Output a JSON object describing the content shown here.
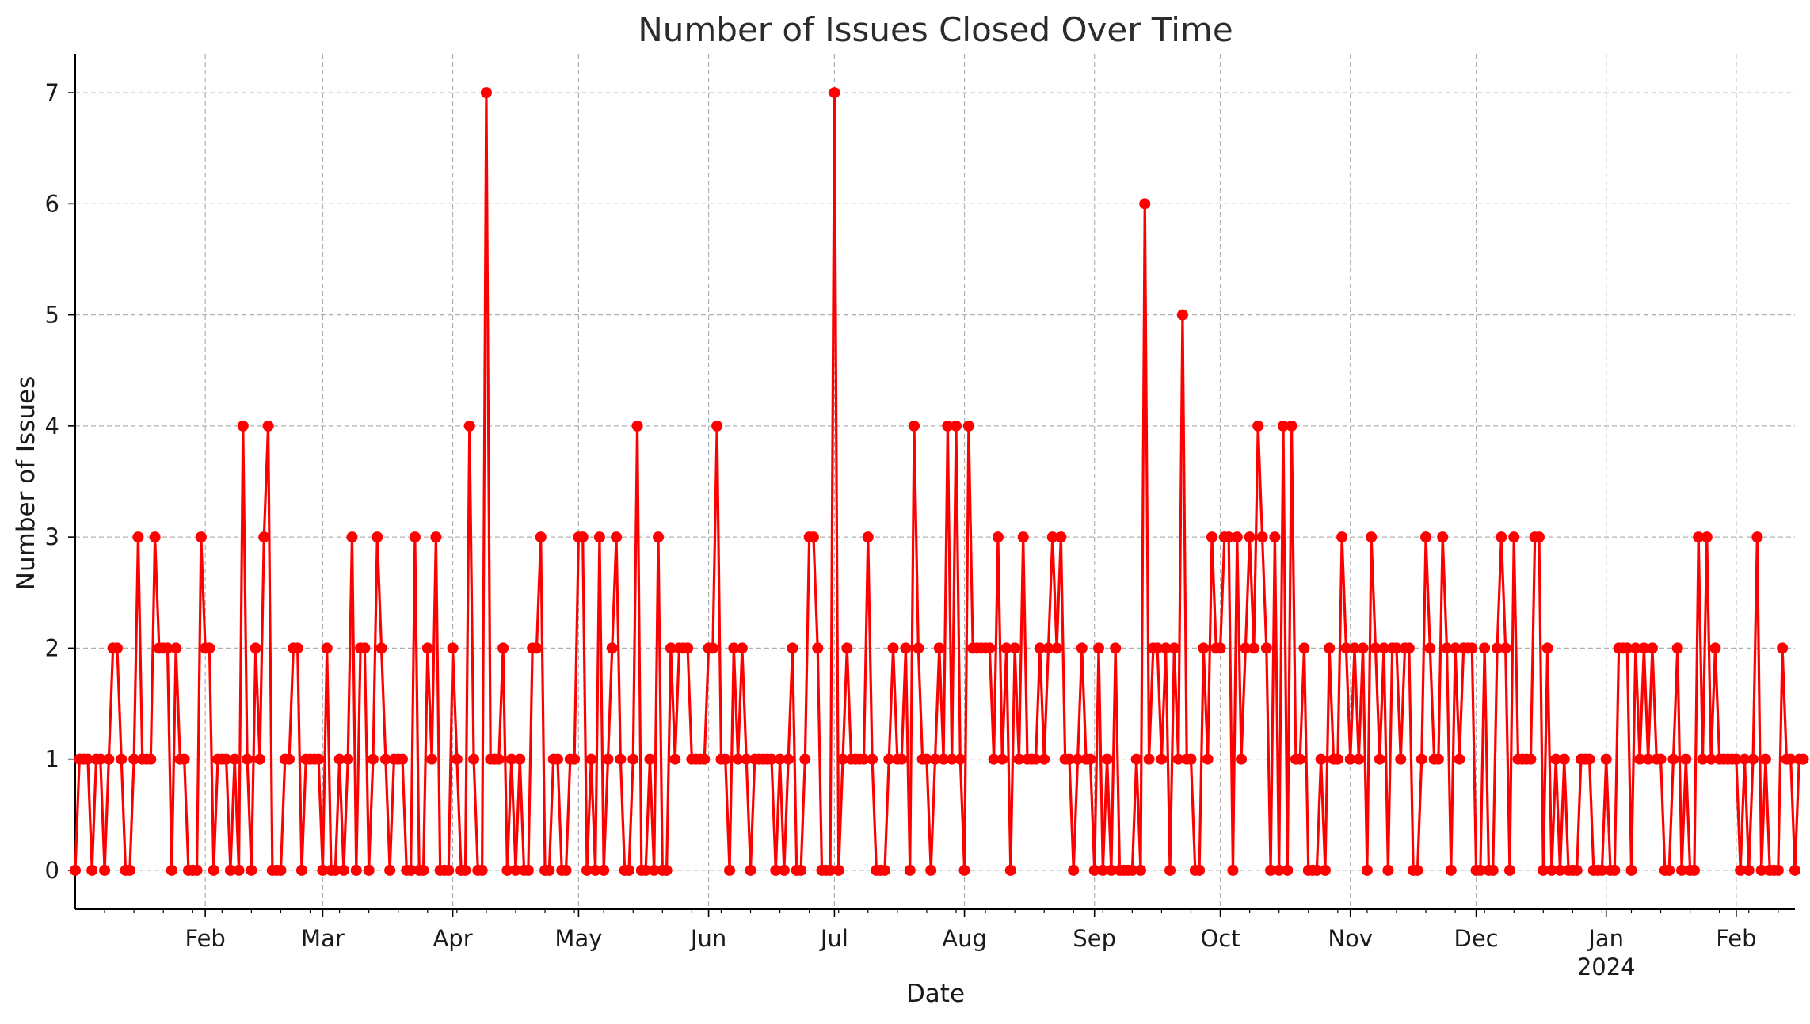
{
  "chart_data": {
    "type": "line",
    "title": "Number of Issues Closed Over Time",
    "xlabel": "Date",
    "ylabel": "Number of Issues",
    "xlim": [
      "2023-01-01",
      "2024-02-15"
    ],
    "ylim": [
      -0.35,
      7.35
    ],
    "grid": true,
    "colors": {
      "line": "#ff0000",
      "grid": "#b0b0b0",
      "axis": "#000000"
    },
    "x_ticks": [
      {
        "date": "2023-02-01",
        "label": "Feb"
      },
      {
        "date": "2023-03-01",
        "label": "Mar"
      },
      {
        "date": "2023-04-01",
        "label": "Apr"
      },
      {
        "date": "2023-05-01",
        "label": "May"
      },
      {
        "date": "2023-06-01",
        "label": "Jun"
      },
      {
        "date": "2023-07-01",
        "label": "Jul"
      },
      {
        "date": "2023-08-01",
        "label": "Aug"
      },
      {
        "date": "2023-09-01",
        "label": "Sep"
      },
      {
        "date": "2023-10-01",
        "label": "Oct"
      },
      {
        "date": "2023-11-01",
        "label": "Nov"
      },
      {
        "date": "2023-12-01",
        "label": "Dec"
      },
      {
        "date": "2024-01-01",
        "label": "Jan",
        "sublabel": "2024"
      },
      {
        "date": "2024-02-01",
        "label": "Feb"
      }
    ],
    "y_ticks": [
      0,
      1,
      2,
      3,
      4,
      5,
      6,
      7
    ],
    "start_date": "2023-01-01",
    "end_date": "2024-02-14",
    "series": [
      {
        "values": [
          0,
          1,
          1,
          1,
          0,
          1,
          1,
          0,
          1,
          2,
          2,
          1,
          0,
          0,
          1,
          3,
          1,
          1,
          1,
          3,
          2,
          2,
          2,
          0,
          2,
          1,
          1,
          0,
          0,
          0,
          3,
          2,
          2,
          0,
          1,
          1,
          1,
          0,
          1,
          0,
          4,
          1,
          0,
          2,
          1,
          3,
          4,
          0,
          0,
          0,
          1,
          1,
          2,
          2,
          0,
          1,
          1,
          1,
          1,
          0,
          2,
          0,
          0,
          1,
          0,
          1,
          3,
          0,
          2,
          2,
          0,
          1,
          3,
          2,
          1,
          0,
          1,
          1,
          1,
          0,
          0,
          3,
          0,
          0,
          2,
          1,
          3,
          0,
          0,
          0,
          2,
          1,
          0,
          0,
          4,
          1,
          0,
          0,
          7,
          1,
          1,
          1,
          2,
          0,
          1,
          0,
          1,
          0,
          0,
          2,
          2,
          3,
          0,
          0,
          1,
          1,
          0,
          0,
          1,
          1,
          3,
          3,
          0,
          1,
          0,
          3,
          0,
          1,
          2,
          3,
          1,
          0,
          0,
          1,
          4,
          0,
          0,
          1,
          0,
          3,
          0,
          0,
          2,
          1,
          2,
          2,
          2,
          1,
          1,
          1,
          1,
          2,
          2,
          4,
          1,
          1,
          0,
          2,
          1,
          2,
          1,
          0,
          1,
          1,
          1,
          1,
          1,
          0,
          1,
          0,
          1,
          2,
          0,
          0,
          1,
          3,
          3,
          2,
          0,
          0,
          0,
          7,
          0,
          1,
          2,
          1,
          1,
          1,
          1,
          3,
          1,
          0,
          0,
          0,
          1,
          2,
          1,
          1,
          2,
          0,
          4,
          2,
          1,
          1,
          0,
          1,
          2,
          1,
          4,
          1,
          4,
          1,
          0,
          4,
          2,
          2,
          2,
          2,
          2,
          1,
          3,
          1,
          2,
          0,
          2,
          1,
          3,
          1,
          1,
          1,
          2,
          1,
          2,
          3,
          2,
          3,
          1,
          1,
          0,
          1,
          2,
          1,
          1,
          0,
          2,
          0,
          1,
          0,
          2,
          0,
          0,
          0,
          0,
          1,
          0,
          6,
          1,
          2,
          2,
          1,
          2,
          0,
          2,
          1,
          5,
          1,
          1,
          0,
          0,
          2,
          1,
          3,
          2,
          2,
          3,
          3,
          0,
          3,
          1,
          2,
          3,
          2,
          4,
          3,
          2,
          0,
          3,
          0,
          4,
          0,
          4,
          1,
          1,
          2,
          0,
          0,
          0,
          1,
          0,
          2,
          1,
          1,
          3,
          2,
          1,
          2,
          1,
          2,
          0,
          3,
          2,
          1,
          2,
          0,
          2,
          2,
          1,
          2,
          2,
          0,
          0,
          1,
          3,
          2,
          1,
          1,
          3,
          2,
          0,
          2,
          1,
          2,
          2,
          2,
          0,
          0,
          2,
          0,
          0,
          2,
          3,
          2,
          0,
          3,
          1,
          1,
          1,
          1,
          3,
          3,
          0,
          2,
          0,
          1,
          0,
          1,
          0,
          0,
          0,
          1,
          1,
          1,
          0,
          0,
          0,
          1,
          0,
          0,
          2,
          2,
          2,
          0,
          2,
          1,
          2,
          1,
          2,
          1,
          1,
          0,
          0,
          1,
          2,
          0,
          1,
          0,
          0,
          3,
          1,
          3,
          1,
          2,
          1,
          1,
          1,
          1,
          1,
          0,
          1,
          0,
          1,
          3,
          0,
          1,
          0,
          0,
          0,
          2,
          1,
          1,
          0,
          1,
          1
        ]
      }
    ]
  }
}
